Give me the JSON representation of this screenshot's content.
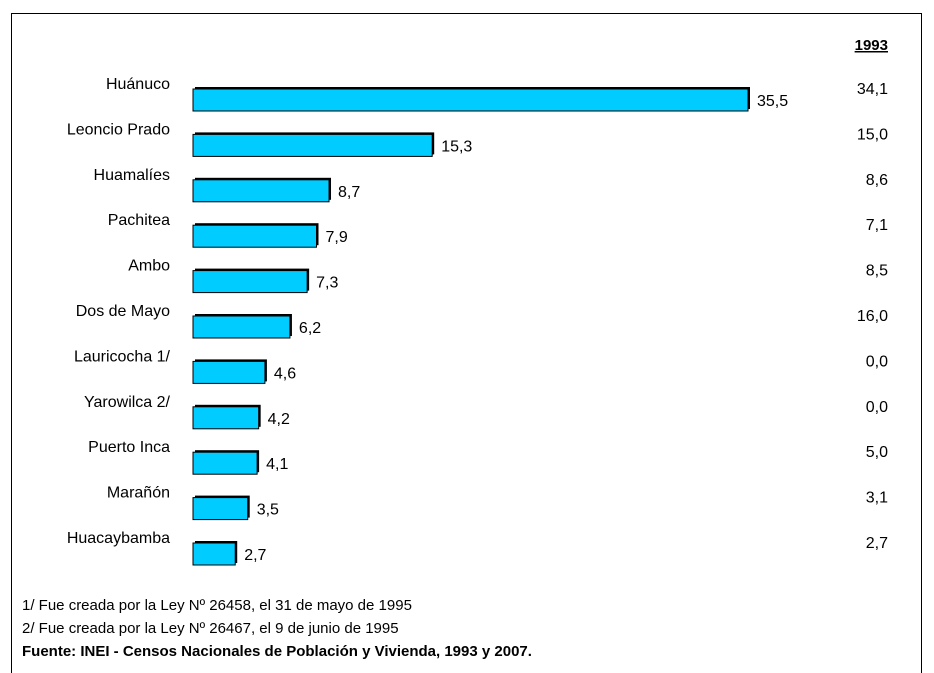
{
  "chart_data": {
    "type": "bar",
    "orientation": "horizontal",
    "categories": [
      "Huánuco",
      "Leoncio Prado",
      "Huamalíes",
      "Pachitea",
      "Ambo",
      "Dos de Mayo",
      "Lauricocha 1/",
      "Yarowilca 2/",
      "Puerto Inca",
      "Marañón",
      "Huacaybamba"
    ],
    "series": [
      {
        "values": [
          35.5,
          15.3,
          8.7,
          7.9,
          7.3,
          6.2,
          4.6,
          4.2,
          4.1,
          3.5,
          2.7
        ],
        "labels": [
          "35,5",
          "15,3",
          "8,7",
          "7,9",
          "7,3",
          "6,2",
          "4,6",
          "4,2",
          "4,1",
          "3,5",
          "2,7"
        ]
      }
    ],
    "column_1993": {
      "header": "1993",
      "values": [
        "34,1",
        "15,0",
        "8,6",
        "7,1",
        "8,5",
        "16,0",
        "0,0",
        "0,0",
        "5,0",
        "3,1",
        "2,7"
      ]
    },
    "bar_color": "#00ccff",
    "xlim": [
      0,
      35.5
    ],
    "grid": false,
    "legend": "none"
  },
  "notes": {
    "note1": "1/ Fue creada por la Ley  Nº 26458, el 31 de mayo de 1995",
    "note2": "2/ Fue creada por la Ley Nº 26467, el 9 de  junio de 1995",
    "source": "Fuente: INEI - Censos Nacionales de Población y Vivienda, 1993 y 2007."
  }
}
